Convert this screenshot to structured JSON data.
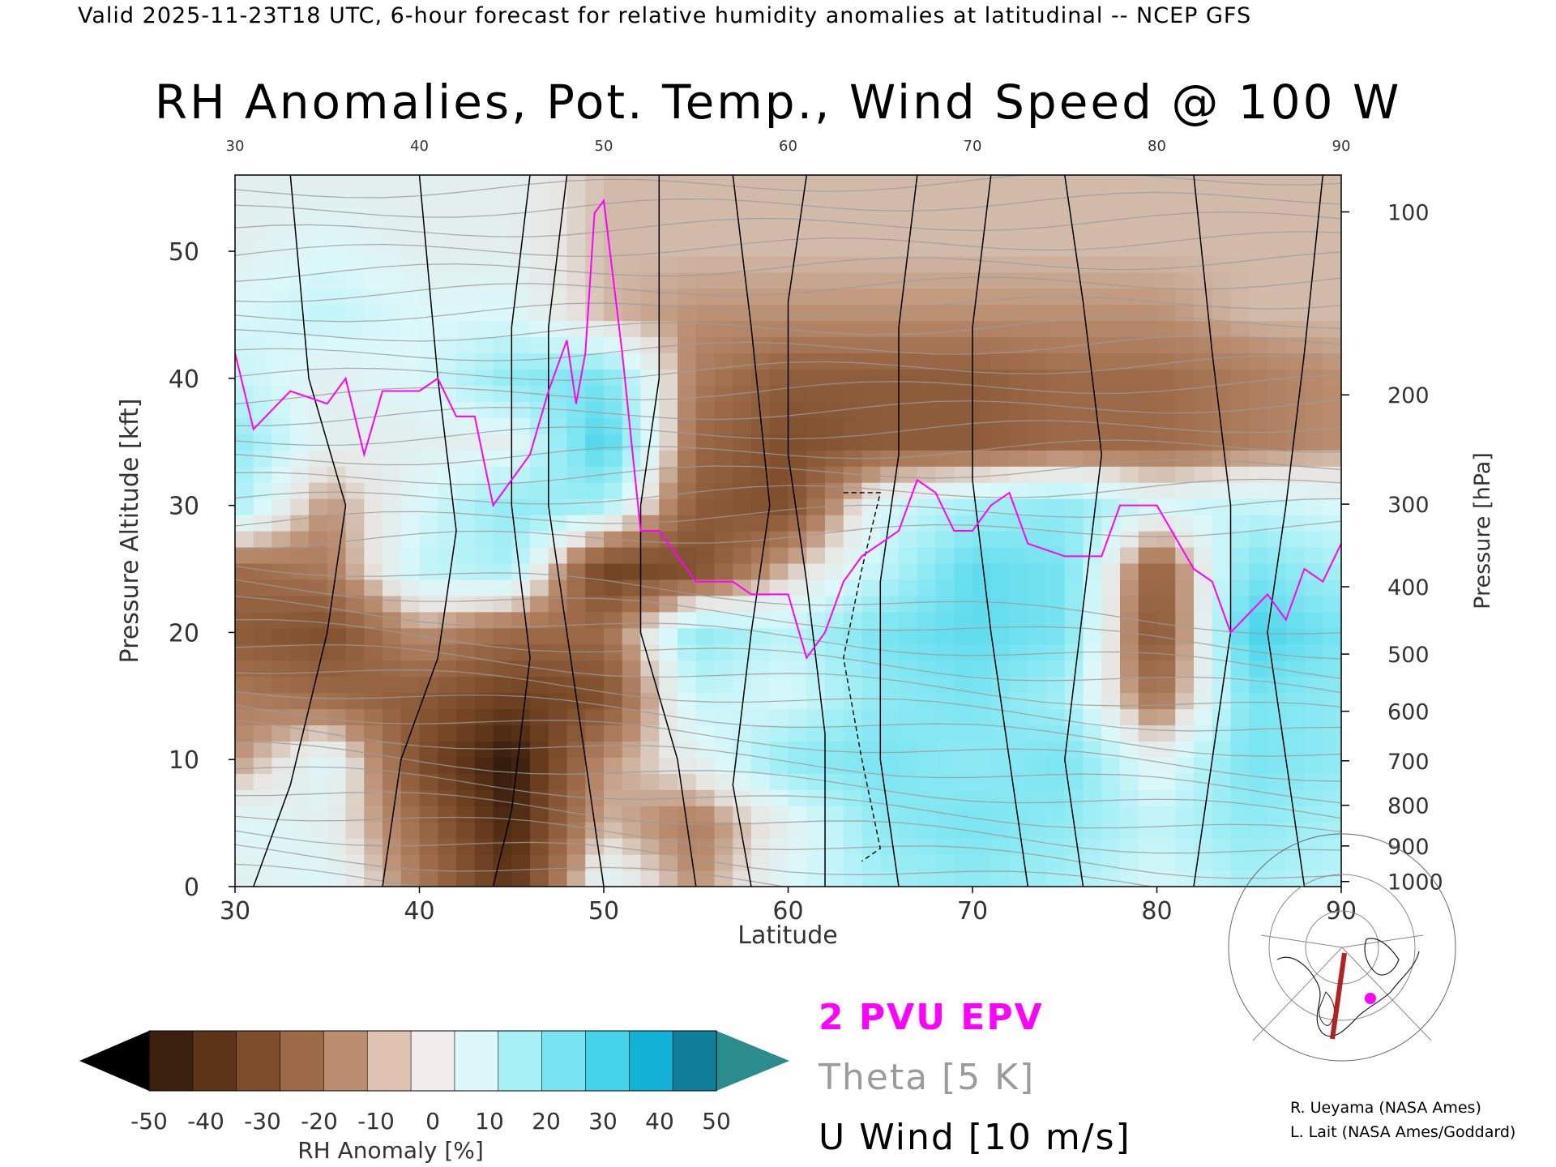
{
  "header": {
    "valid_line": "Valid 2025-11-23T18 UTC, 6-hour forecast for relative humidity anomalies at latitudinal -- NCEP GFS"
  },
  "chart_data": {
    "type": "heatmap",
    "title": "RH Anomalies, Pot. Temp., Wind Speed @ 100 W",
    "xlabel": "Latitude",
    "ylabel": "Pressure Altitude [kft]",
    "ylabel_right": "Pressure [hPa]",
    "xlim": [
      30,
      90
    ],
    "ylim": [
      0,
      56
    ],
    "x_ticks": [
      30,
      40,
      50,
      60,
      70,
      80,
      90
    ],
    "y_ticks": [
      0,
      10,
      20,
      30,
      40,
      50
    ],
    "pressure_ticks": [
      {
        "label": "100",
        "kft": 53.1
      },
      {
        "label": "200",
        "kft": 38.7
      },
      {
        "label": "300",
        "kft": 30.1
      },
      {
        "label": "400",
        "kft": 23.6
      },
      {
        "label": "500",
        "kft": 18.3
      },
      {
        "label": "600",
        "kft": 13.8
      },
      {
        "label": "700",
        "kft": 9.9
      },
      {
        "label": "800",
        "kft": 6.4
      },
      {
        "label": "900",
        "kft": 3.2
      },
      {
        "label": "1000",
        "kft": 0.4
      }
    ],
    "rh_anomaly_grid": {
      "lat": [
        30,
        35,
        40,
        45,
        50,
        55,
        60,
        65,
        70,
        75,
        80,
        85,
        90
      ],
      "alt_kft": [
        0,
        5,
        10,
        15,
        20,
        25,
        30,
        35,
        40,
        45,
        50,
        55
      ],
      "values_pct": [
        [
          5,
          10,
          -15,
          -40,
          10,
          -10,
          10,
          20,
          25,
          20,
          10,
          20,
          15
        ],
        [
          10,
          5,
          -20,
          -45,
          -5,
          -15,
          5,
          25,
          30,
          25,
          15,
          25,
          20
        ],
        [
          -10,
          10,
          -30,
          -50,
          -10,
          5,
          25,
          30,
          25,
          30,
          5,
          30,
          25
        ],
        [
          -15,
          -20,
          -25,
          -35,
          -30,
          15,
          10,
          25,
          30,
          20,
          -20,
          30,
          25
        ],
        [
          -25,
          -30,
          -10,
          -20,
          -20,
          25,
          15,
          30,
          35,
          30,
          -30,
          40,
          30
        ],
        [
          -20,
          -15,
          15,
          20,
          -35,
          -30,
          -5,
          15,
          35,
          30,
          -25,
          30,
          20
        ],
        [
          20,
          -10,
          10,
          25,
          20,
          -25,
          -30,
          10,
          20,
          25,
          10,
          15,
          10
        ],
        [
          25,
          5,
          5,
          5,
          40,
          -20,
          -30,
          -25,
          -25,
          -20,
          -20,
          -15,
          -10
        ],
        [
          15,
          5,
          10,
          25,
          30,
          -15,
          -25,
          -25,
          -25,
          -20,
          -20,
          -15,
          -10
        ],
        [
          10,
          15,
          10,
          10,
          -5,
          -10,
          -10,
          -10,
          -10,
          -10,
          -10,
          -5,
          -5
        ],
        [
          5,
          10,
          5,
          5,
          -5,
          -5,
          -5,
          -5,
          -5,
          -5,
          -5,
          -5,
          -5
        ],
        [
          5,
          5,
          5,
          5,
          -5,
          -5,
          -5,
          -5,
          -5,
          -5,
          -5,
          -5,
          -5
        ]
      ]
    },
    "colorbar": {
      "label": "RH Anomaly [%]",
      "ticks": [
        "-50",
        "-40",
        "-30",
        "-20",
        "-10",
        "0",
        "10",
        "20",
        "30",
        "40",
        "50"
      ],
      "colors": [
        "#3b1f0f",
        "#5c3317",
        "#7e4e2c",
        "#9c6a48",
        "#bb8e71",
        "#e0c2b0",
        "#f2ecea",
        "#dcf8fa",
        "#a7f0f6",
        "#79e4f1",
        "#44d2ea",
        "#12b2d6",
        "#117e9c",
        "#000000",
        "#2a8c8c"
      ]
    },
    "contour_legend": {
      "epv": {
        "label": "2 PVU EPV",
        "color": "#ff00ff"
      },
      "theta": {
        "label": "Theta [5 K]",
        "color": "#9b9b9b"
      },
      "uwind": {
        "label": "U Wind [10 m/s]",
        "color": "#000000"
      }
    }
  },
  "credits": {
    "line1": "R. Ueyama (NASA Ames)",
    "line2": "L. Lait (NASA Ames/Goddard)"
  }
}
